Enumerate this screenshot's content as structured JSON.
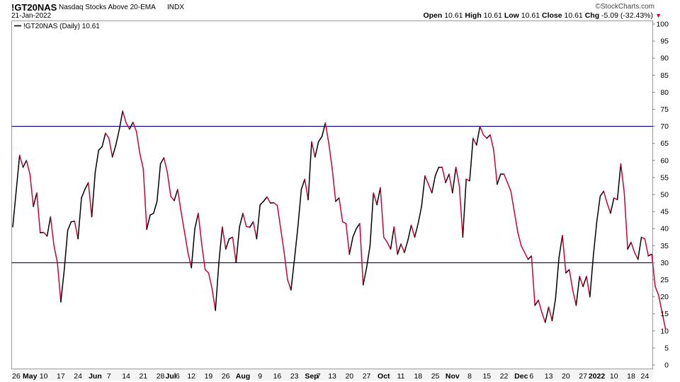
{
  "header": {
    "symbol": "!GT20NAS",
    "name": "Nasdaq Stocks Above 20-EMA",
    "exchange": "INDX",
    "date": "21-Jan-2022",
    "watermark": "©StockCharts.com",
    "ohlc": [
      {
        "label": "Open",
        "value": "10.61"
      },
      {
        "label": "High",
        "value": "10.61"
      },
      {
        "label": "Low",
        "value": "10.61"
      },
      {
        "label": "Close",
        "value": "10.61"
      },
      {
        "label": "Chg",
        "value": "-5.09 (-32.43%)"
      }
    ],
    "chg_marker": "▼"
  },
  "legend": {
    "label": "!GT20NAS (Daily) 10.61"
  },
  "colors": {
    "up": "#000000",
    "down": "#cc0033",
    "reference_line": "#000080",
    "grid": "#e3e3e3",
    "frame": "#9a9a9a"
  },
  "chart_data": {
    "type": "line",
    "title": "Nasdaq Stocks Above 20-EMA",
    "series": [
      {
        "name": "!GT20NAS (Daily)"
      }
    ],
    "up_color_when_rising": true,
    "ylim": [
      0,
      100
    ],
    "y_ticks": [
      100,
      95,
      90,
      85,
      80,
      75,
      70,
      65,
      60,
      55,
      50,
      45,
      40,
      35,
      30,
      25,
      20,
      15,
      10,
      5,
      0
    ],
    "reference_lines": [
      70,
      30
    ],
    "grid": false,
    "legend_position": "top-left",
    "x_ticks": [
      {
        "i": 1,
        "label": "26"
      },
      {
        "i": 5,
        "label": "May"
      },
      {
        "i": 9,
        "label": "10"
      },
      {
        "i": 14,
        "label": "17"
      },
      {
        "i": 19,
        "label": "24"
      },
      {
        "i": 24,
        "label": "Jun"
      },
      {
        "i": 28,
        "label": "7"
      },
      {
        "i": 33,
        "label": "14"
      },
      {
        "i": 38,
        "label": "21"
      },
      {
        "i": 43,
        "label": "28"
      },
      {
        "i": 46,
        "label": "Jul"
      },
      {
        "i": 48,
        "label": "6"
      },
      {
        "i": 52,
        "label": "12"
      },
      {
        "i": 57,
        "label": "19"
      },
      {
        "i": 62,
        "label": "26"
      },
      {
        "i": 67,
        "label": "Aug"
      },
      {
        "i": 72,
        "label": "9"
      },
      {
        "i": 77,
        "label": "16"
      },
      {
        "i": 82,
        "label": "23"
      },
      {
        "i": 87,
        "label": "Sep"
      },
      {
        "i": 89,
        "label": "7"
      },
      {
        "i": 93,
        "label": "13"
      },
      {
        "i": 98,
        "label": "20"
      },
      {
        "i": 103,
        "label": "27"
      },
      {
        "i": 108,
        "label": "Oct"
      },
      {
        "i": 113,
        "label": "11"
      },
      {
        "i": 118,
        "label": "18"
      },
      {
        "i": 123,
        "label": "25"
      },
      {
        "i": 128,
        "label": "Nov"
      },
      {
        "i": 133,
        "label": "8"
      },
      {
        "i": 138,
        "label": "15"
      },
      {
        "i": 143,
        "label": "22"
      },
      {
        "i": 148,
        "label": "Dec"
      },
      {
        "i": 151,
        "label": "6"
      },
      {
        "i": 156,
        "label": "13"
      },
      {
        "i": 161,
        "label": "20"
      },
      {
        "i": 166,
        "label": "27"
      },
      {
        "i": 170,
        "label": "2022"
      },
      {
        "i": 175,
        "label": "10"
      },
      {
        "i": 180,
        "label": "18"
      },
      {
        "i": 184,
        "label": "24"
      }
    ],
    "x_tick_bold": [
      "May",
      "Jun",
      "Jul",
      "Aug",
      "Sep",
      "Oct",
      "Nov",
      "Dec",
      "2022"
    ],
    "values": [
      40.5,
      51,
      61.5,
      58,
      60,
      56,
      46.5,
      50.5,
      38.8,
      38.9,
      37.8,
      43.5,
      35,
      30,
      18.5,
      28,
      39.5,
      42,
      42.2,
      37,
      49,
      51.5,
      53.5,
      43.5,
      56.5,
      63,
      64,
      68,
      66.5,
      61,
      64.5,
      69,
      74.5,
      71,
      69.2,
      71.2,
      68.5,
      62,
      57.5,
      39.8,
      44,
      44.5,
      48,
      59,
      60.8,
      56.5,
      49.5,
      48.2,
      51.5,
      45,
      39,
      33,
      28.5,
      40,
      44.5,
      35.5,
      28,
      27,
      22.5,
      16,
      30,
      40.5,
      34,
      37,
      37.5,
      30,
      40.5,
      44.5,
      40.6,
      40.4,
      42,
      37,
      47,
      48,
      49.3,
      47.5,
      47.6,
      46.8,
      40,
      33,
      25,
      22,
      31,
      40.5,
      51.5,
      54.5,
      48.5,
      65.5,
      61,
      65.5,
      67,
      71,
      65,
      57.5,
      48,
      49,
      42,
      41.5,
      32.5,
      37.5,
      40,
      41.5,
      23.5,
      28.5,
      35,
      50.5,
      47,
      52,
      37.5,
      36,
      34,
      40.5,
      32.5,
      35.5,
      33,
      36.5,
      41,
      37.5,
      41.5,
      46.5,
      55.5,
      53,
      50.5,
      55.5,
      58,
      58,
      53.5,
      56,
      50.5,
      58,
      52.5,
      37.5,
      54.5,
      54,
      66.5,
      64.5,
      70,
      67.5,
      66.5,
      67.5,
      63,
      53,
      56,
      56,
      53.5,
      51,
      45,
      39,
      35,
      33,
      31,
      32,
      17.5,
      19,
      15.5,
      12.5,
      17,
      13,
      19.5,
      31.5,
      38,
      27,
      28,
      22,
      17.5,
      26,
      23,
      26,
      20,
      32,
      42,
      49.5,
      51,
      47.5,
      44.5,
      49,
      48.5,
      59,
      50.5,
      34,
      36,
      33,
      31,
      37.5,
      37,
      32,
      32.5,
      23,
      20.5,
      15.5,
      10.6
    ]
  }
}
